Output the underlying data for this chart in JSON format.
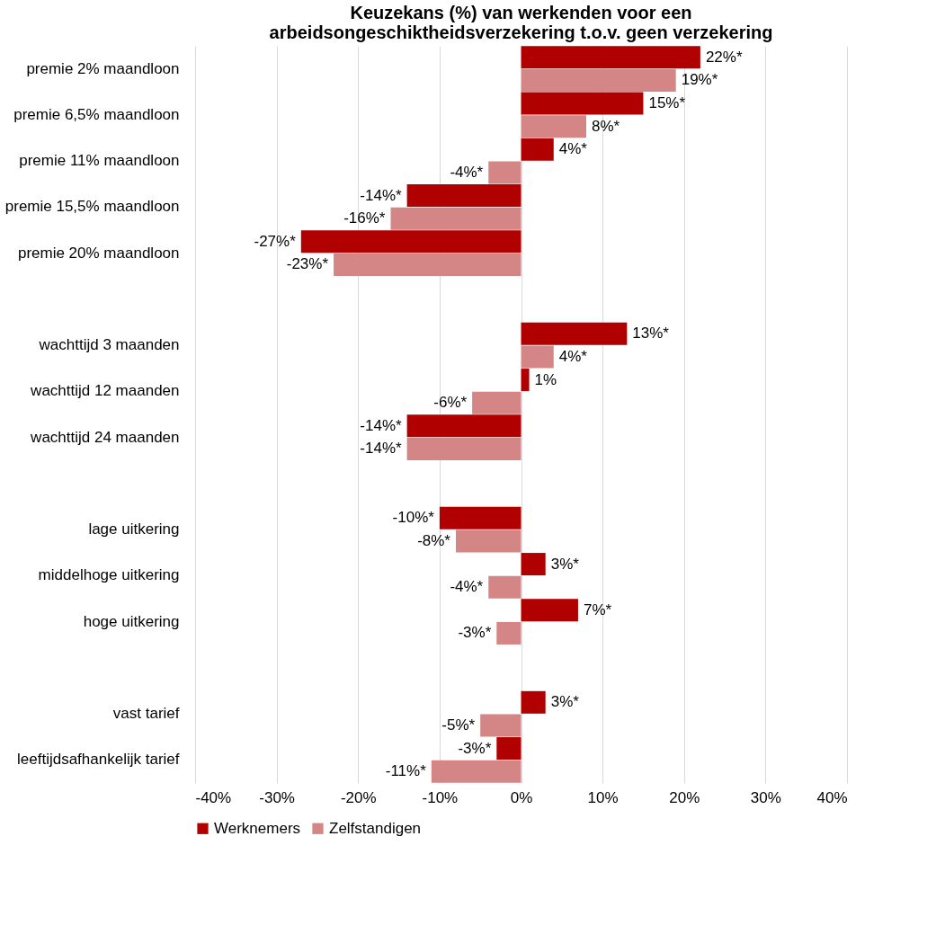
{
  "chart_data": {
    "type": "bar",
    "orientation": "horizontal",
    "title": "Keuzekans (%) van werkenden voor een\narbeidsongeschiktheidsverzekering t.o.v. geen verzekering",
    "categories": [
      "premie 2% maandloon",
      "premie 6,5% maandloon",
      "premie 11% maandloon",
      "premie 15,5% maandloon",
      "premie 20% maandloon",
      null,
      "wachttijd 3 maanden",
      "wachttijd 12 maanden",
      "wachttijd 24 maanden",
      null,
      "lage uitkering",
      "middelhoge uitkering",
      "hoge uitkering",
      null,
      "vast tarief",
      "leeftijdsafhankelijk tarief"
    ],
    "series": [
      {
        "name": "Werknemers",
        "color": "#b00000",
        "values": [
          22,
          15,
          4,
          -14,
          -27,
          null,
          13,
          1,
          -14,
          null,
          -10,
          3,
          7,
          null,
          3,
          -3
        ],
        "value_labels": [
          "22%*",
          "15%*",
          "4%*",
          "-14%*",
          "-27%*",
          null,
          "13%*",
          "1%",
          "-14%*",
          null,
          "-10%*",
          "3%*",
          "7%*",
          null,
          "3%*",
          "-3%*"
        ]
      },
      {
        "name": "Zelfstandigen",
        "color": "#d48585",
        "values": [
          19,
          8,
          -4,
          -16,
          -23,
          null,
          4,
          -6,
          -14,
          null,
          -8,
          -4,
          -3,
          null,
          -5,
          -11
        ],
        "value_labels": [
          "19%*",
          "8%*",
          "-4%*",
          "-16%*",
          "-23%*",
          null,
          "4%*",
          "-6%*",
          "-14%*",
          null,
          "-8%*",
          "-4%*",
          "-3%*",
          null,
          "-5%*",
          "-11%*"
        ]
      }
    ],
    "xlim": [
      -40,
      40
    ],
    "xticks": [
      {
        "value": -40,
        "label": "-40%"
      },
      {
        "value": -30,
        "label": "-30%"
      },
      {
        "value": -20,
        "label": "-20%"
      },
      {
        "value": -10,
        "label": "-10%"
      },
      {
        "value": 0,
        "label": "0%"
      },
      {
        "value": 10,
        "label": "10%"
      },
      {
        "value": 20,
        "label": "20%"
      },
      {
        "value": 30,
        "label": "30%"
      },
      {
        "value": 40,
        "label": "40%"
      }
    ],
    "grid": "x",
    "legend": "bottom"
  }
}
